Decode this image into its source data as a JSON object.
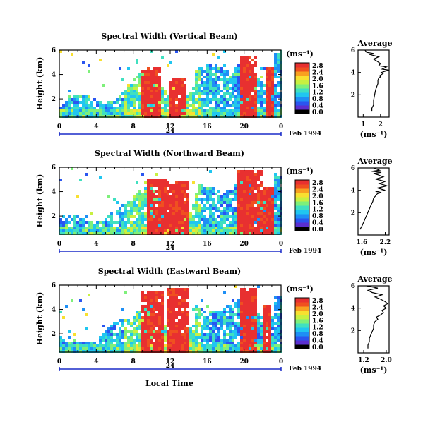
{
  "colors": {
    "scale": [
      "#000000",
      "#5a2fd0",
      "#2a55f0",
      "#1e8ff5",
      "#20c6f0",
      "#40e0c0",
      "#7ef07a",
      "#c8f040",
      "#f8e030",
      "#f8a020",
      "#f05020",
      "#e83030"
    ],
    "date_bar": "#1a2cc8",
    "line": "#000000"
  },
  "chart_data": [
    {
      "type": "heatmap",
      "title": "Spectral Width (Vertical Beam)",
      "ylabel": "Height (km)",
      "y_ticks": [
        "6",
        "4",
        "2"
      ],
      "ylim": [
        0.5,
        6
      ],
      "x_ticks": [
        "0",
        "4",
        "8",
        "12",
        "16",
        "20",
        "0"
      ],
      "xlim": [
        0,
        24
      ],
      "date_label": "24",
      "date_suffix": "Feb 1994",
      "colorbar": {
        "unit": "(ms⁻¹)",
        "labels": [
          "2.8",
          "2.4",
          "2.0",
          "1.6",
          "1.2",
          "0.8",
          "0.4",
          "0.0"
        ]
      },
      "high_bands": [
        [
          8.6,
          11.0,
          4.8
        ],
        [
          11.7,
          13.7,
          3.9
        ],
        [
          19.4,
          21.4,
          5.6
        ],
        [
          22.2,
          23.2,
          4.8
        ]
      ]
    },
    {
      "type": "heatmap",
      "title": "Spectral Width (Northward Beam)",
      "ylabel": "Height (km)",
      "y_ticks": [
        "6",
        "4",
        "2"
      ],
      "ylim": [
        0.5,
        6
      ],
      "x_ticks": [
        "0",
        "4",
        "8",
        "12",
        "16",
        "20",
        "0"
      ],
      "xlim": [
        0,
        24
      ],
      "date_label": "24",
      "date_suffix": "Feb 1994",
      "colorbar": {
        "unit": "(ms⁻¹)",
        "labels": [
          "2.8",
          "2.4",
          "2.0",
          "1.6",
          "1.2",
          "0.8",
          "0.4",
          "0.0"
        ]
      },
      "high_bands": [
        [
          9.2,
          11.5,
          5.3
        ],
        [
          11.6,
          13.8,
          4.9
        ],
        [
          19.2,
          21.8,
          5.9
        ],
        [
          22.0,
          23.0,
          4.6
        ]
      ]
    },
    {
      "type": "heatmap",
      "title": "Spectral Width (Eastward Beam)",
      "ylabel": "Height (km)",
      "y_ticks": [
        "6",
        "4",
        "2"
      ],
      "ylim": [
        0.5,
        6
      ],
      "x_ticks": [
        "0",
        "4",
        "8",
        "12",
        "16",
        "20",
        "0"
      ],
      "xlim": [
        0,
        24
      ],
      "date_label": "24",
      "date_suffix": "Feb 1994",
      "xlabel": "Local Time",
      "colorbar": {
        "unit": "(ms⁻¹)",
        "labels": [
          "2.8",
          "2.4",
          "2.0",
          "1.6",
          "1.2",
          "0.8",
          "0.4",
          "0.0"
        ]
      },
      "high_bands": [
        [
          8.8,
          11.2,
          5.6
        ],
        [
          11.6,
          13.8,
          5.9
        ],
        [
          19.3,
          21.2,
          5.8
        ],
        [
          21.9,
          22.7,
          4.4
        ]
      ]
    },
    {
      "type": "line",
      "title": "Average",
      "xlabel": "(ms⁻¹)",
      "x_ticks": [
        "1",
        "2"
      ],
      "xlim": [
        0.7,
        2.5
      ],
      "y_ticks": [
        "6",
        "4",
        "2"
      ],
      "ylim": [
        0,
        6
      ],
      "x": [
        1.5,
        1.5,
        1.6,
        1.6,
        1.65,
        1.7,
        1.75,
        1.8,
        1.85,
        1.85,
        1.9,
        2.0,
        1.95,
        2.05,
        2.15,
        2.05,
        2.25,
        2.5,
        2.1,
        2.35,
        1.9,
        2.0,
        1.8,
        1.6,
        1.9,
        1.4,
        1.6,
        1.2,
        1.1
      ],
      "y": [
        0.5,
        0.8,
        1.1,
        1.5,
        1.9,
        2.3,
        2.6,
        2.8,
        3.0,
        3.3,
        3.5,
        3.6,
        3.7,
        3.8,
        3.9,
        4.0,
        4.1,
        4.2,
        4.3,
        4.5,
        4.6,
        4.8,
        5.0,
        5.2,
        5.4,
        5.6,
        5.7,
        5.8,
        6.0
      ]
    },
    {
      "type": "line",
      "title": "Average",
      "xlabel": "(ms⁻¹)",
      "x_ticks": [
        "1.6",
        "2.2"
      ],
      "xlim": [
        1.5,
        2.3
      ],
      "y_ticks": [
        "6",
        "4",
        "2"
      ],
      "ylim": [
        0,
        6
      ],
      "x": [
        1.55,
        1.6,
        1.65,
        1.7,
        1.75,
        1.8,
        1.85,
        1.88,
        1.9,
        1.95,
        2.0,
        2.1,
        1.95,
        2.2,
        2.0,
        2.25,
        2.05,
        2.2,
        1.95,
        2.15,
        2.0,
        1.9,
        2.1,
        1.85,
        2.05,
        1.9
      ],
      "y": [
        0.5,
        0.8,
        1.2,
        1.6,
        2.0,
        2.4,
        2.8,
        3.0,
        3.3,
        3.5,
        3.7,
        3.8,
        3.9,
        4.0,
        4.2,
        4.4,
        4.6,
        4.8,
        5.0,
        5.2,
        5.4,
        5.5,
        5.6,
        5.7,
        5.8,
        6.0
      ]
    },
    {
      "type": "line",
      "title": "Average",
      "xlabel": "(ms⁻¹)",
      "x_ticks": [
        "1.2",
        "2.0"
      ],
      "xlim": [
        1.0,
        2.1
      ],
      "y_ticks": [
        "6",
        "4",
        "2"
      ],
      "ylim": [
        0,
        6
      ],
      "x": [
        1.35,
        1.35,
        1.4,
        1.4,
        1.45,
        1.5,
        1.55,
        1.55,
        1.6,
        1.7,
        1.65,
        1.8,
        1.9,
        1.85,
        2.0,
        1.9,
        2.05,
        1.95,
        1.8,
        1.6,
        1.85,
        1.5,
        1.35,
        1.7,
        1.3
      ],
      "y": [
        0.4,
        0.7,
        1.0,
        1.3,
        1.6,
        1.9,
        2.2,
        2.5,
        2.8,
        3.0,
        3.2,
        3.4,
        3.6,
        3.8,
        4.0,
        4.2,
        4.4,
        4.6,
        4.8,
        5.0,
        5.2,
        5.4,
        5.6,
        5.8,
        6.0
      ]
    }
  ]
}
